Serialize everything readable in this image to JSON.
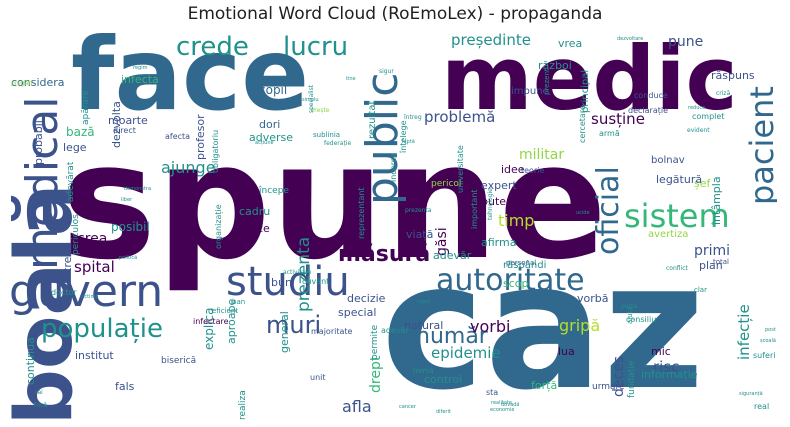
{
  "title": "Emotional Word Cloud (RoEmoLex) - propaganda",
  "palette": {
    "dark_purple": "#440154",
    "indigo": "#3b528b",
    "blue": "#31688e",
    "teal": "#21918c",
    "green": "#35b779",
    "lime": "#90d743",
    "yellow": "#b5de2b"
  },
  "words": [
    {
      "text": "spune",
      "size": "xxl",
      "color": "dark_purple"
    },
    {
      "text": "caz",
      "size": "xxl",
      "color": "blue"
    },
    {
      "text": "face",
      "size": "xl",
      "color": "blue"
    },
    {
      "text": "medic",
      "size": "xl",
      "color": "dark_purple"
    },
    {
      "text": "boală",
      "size": "xl",
      "color": "indigo"
    },
    {
      "text": "guvern",
      "size": "l",
      "color": "indigo"
    },
    {
      "text": "medical",
      "size": "l",
      "color": "indigo"
    },
    {
      "text": "public",
      "size": "l",
      "color": "blue"
    },
    {
      "text": "studiu",
      "size": "l",
      "color": "indigo"
    },
    {
      "text": "sistem",
      "size": "m",
      "color": "green"
    },
    {
      "text": "autoritate",
      "size": "m",
      "color": "blue"
    },
    {
      "text": "populație",
      "size": "m",
      "color": "teal"
    },
    {
      "text": "pacient",
      "size": "m",
      "color": "blue"
    },
    {
      "text": "oficial",
      "size": "m",
      "color": "blue"
    },
    {
      "text": "crede",
      "size": "m",
      "color": "teal"
    },
    {
      "text": "lucru",
      "size": "m",
      "color": "teal"
    },
    {
      "text": "măsură",
      "size": "m",
      "color": "dark_purple"
    },
    {
      "text": "muri",
      "size": "m",
      "color": "indigo"
    },
    {
      "text": "zi",
      "size": "m",
      "color": "dark_purple"
    },
    {
      "text": "număr",
      "size": "m",
      "color": "blue"
    },
    {
      "text": "epidemie",
      "size": "s",
      "color": "teal"
    },
    {
      "text": "prezenta",
      "size": "s",
      "color": "teal"
    },
    {
      "text": "timp",
      "size": "s",
      "color": "yellow"
    },
    {
      "text": "gripă",
      "size": "s",
      "color": "yellow"
    },
    {
      "text": "vorbi",
      "size": "s",
      "color": "dark_purple"
    },
    {
      "text": "spital",
      "size": "s",
      "color": "dark_purple"
    },
    {
      "text": "problemă",
      "size": "s",
      "color": "indigo"
    },
    {
      "text": "președinte",
      "size": "s",
      "color": "teal"
    },
    {
      "text": "susține",
      "size": "s",
      "color": "dark_purple"
    },
    {
      "text": "militar",
      "size": "s",
      "color": "lime"
    },
    {
      "text": "ajunge",
      "size": "s",
      "color": "teal"
    },
    {
      "text": "crea",
      "size": "s",
      "color": "dark_purple"
    },
    {
      "text": "găsi",
      "size": "s",
      "color": "dark_purple"
    },
    {
      "text": "infecție",
      "size": "s",
      "color": "teal"
    },
    {
      "text": "risc",
      "size": "s",
      "color": "indigo"
    },
    {
      "text": "deces",
      "size": "s",
      "color": "indigo"
    },
    {
      "text": "drept",
      "size": "s",
      "color": "green"
    },
    {
      "text": "afla",
      "size": "s",
      "color": "indigo"
    },
    {
      "text": "pune",
      "size": "s",
      "color": "indigo"
    },
    {
      "text": "primi",
      "size": "s",
      "color": "indigo"
    },
    {
      "text": "posibil",
      "size": "xs",
      "color": "teal"
    },
    {
      "text": "copil",
      "size": "xs",
      "color": "blue"
    },
    {
      "text": "dori",
      "size": "xs",
      "color": "blue"
    },
    {
      "text": "adevăr",
      "size": "xs",
      "color": "teal"
    },
    {
      "text": "viață",
      "size": "xs",
      "color": "indigo"
    },
    {
      "text": "expert",
      "size": "xs",
      "color": "indigo"
    },
    {
      "text": "idee",
      "size": "xs",
      "color": "dark_purple"
    },
    {
      "text": "putere",
      "size": "xs",
      "color": "dark_purple"
    },
    {
      "text": "afirma",
      "size": "xs",
      "color": "teal"
    },
    {
      "text": "special",
      "size": "xs",
      "color": "indigo"
    },
    {
      "text": "natural",
      "size": "xs",
      "color": "indigo"
    },
    {
      "text": "decizie",
      "size": "xs",
      "color": "indigo"
    },
    {
      "text": "control",
      "size": "xs",
      "color": "teal"
    },
    {
      "text": "cadru",
      "size": "xs",
      "color": "teal"
    },
    {
      "text": "duce",
      "size": "xs",
      "color": "dark_purple"
    },
    {
      "text": "bun",
      "size": "xs",
      "color": "indigo"
    },
    {
      "text": "lua",
      "size": "xs",
      "color": "dark_purple"
    },
    {
      "text": "mic",
      "size": "xs",
      "color": "dark_purple"
    },
    {
      "text": "informație",
      "size": "xs",
      "color": "teal"
    },
    {
      "text": "plan",
      "size": "xs",
      "color": "indigo"
    },
    {
      "text": "infecta",
      "size": "xs",
      "color": "green"
    },
    {
      "text": "considera",
      "size": "xs",
      "color": "blue"
    },
    {
      "text": "probabil",
      "size": "xs",
      "color": "indigo"
    },
    {
      "text": "moarte",
      "size": "xs",
      "color": "indigo"
    },
    {
      "text": "dezvolta",
      "size": "xs",
      "color": "indigo"
    },
    {
      "text": "bază",
      "size": "xs",
      "color": "green"
    },
    {
      "text": "lege",
      "size": "xs",
      "color": "indigo"
    },
    {
      "text": "adevărat",
      "size": "xs",
      "color": "teal"
    },
    {
      "text": "război",
      "size": "xs",
      "color": "teal"
    },
    {
      "text": "vrea",
      "size": "xs",
      "color": "teal"
    },
    {
      "text": "răspuns",
      "size": "xs",
      "color": "indigo"
    },
    {
      "text": "șef",
      "size": "xs",
      "color": "lime"
    },
    {
      "text": "întâmpla",
      "size": "xs",
      "color": "teal"
    },
    {
      "text": "legătură",
      "size": "xs",
      "color": "indigo"
    },
    {
      "text": "bolnav",
      "size": "xs",
      "color": "indigo"
    },
    {
      "text": "avertiza",
      "size": "xs",
      "color": "lime"
    },
    {
      "text": "explica",
      "size": "xs",
      "color": "teal"
    },
    {
      "text": "aproape",
      "size": "xs",
      "color": "teal"
    },
    {
      "text": "continua",
      "size": "xs",
      "color": "teal"
    },
    {
      "text": "institut",
      "size": "xs",
      "color": "indigo"
    },
    {
      "text": "fals",
      "size": "xs",
      "color": "indigo"
    },
    {
      "text": "forță",
      "size": "xs",
      "color": "green"
    },
    {
      "text": "vorbă",
      "size": "xs",
      "color": "indigo"
    },
    {
      "text": "scop",
      "size": "xs",
      "color": "green"
    },
    {
      "text": "trece",
      "size": "xs",
      "color": "indigo"
    },
    {
      "text": "profesor",
      "size": "xs",
      "color": "indigo"
    },
    {
      "text": "general",
      "size": "xs",
      "color": "teal"
    },
    {
      "text": "permite",
      "size": "xs",
      "color": "teal"
    },
    {
      "text": "doctor",
      "size": "xxs",
      "color": "teal"
    },
    {
      "text": "adevăr",
      "size": "xxs",
      "color": "teal"
    },
    {
      "text": "cuvânt",
      "size": "xxs",
      "color": "teal"
    },
    {
      "text": "rezultat",
      "size": "xxs",
      "color": "teal"
    },
    {
      "text": "pericol",
      "size": "xxs",
      "color": "lime"
    },
    {
      "text": "teorie",
      "size": "xxs",
      "color": "indigo"
    },
    {
      "text": "crește",
      "size": "xxs",
      "color": "lime"
    },
    {
      "text": "întreg",
      "size": "xxs",
      "color": "teal"
    },
    {
      "text": "începe",
      "size": "xxs",
      "color": "teal"
    },
    {
      "text": "consiliu",
      "size": "xxs",
      "color": "teal"
    },
    {
      "text": "conduce",
      "size": "xxs",
      "color": "indigo"
    },
    {
      "text": "declarație",
      "size": "xxs",
      "color": "indigo"
    },
    {
      "text": "principal",
      "size": "xxs",
      "color": "teal"
    },
    {
      "text": "impune",
      "size": "xxs",
      "color": "indigo"
    },
    {
      "text": "urmare",
      "size": "xxs",
      "color": "indigo"
    },
    {
      "text": "biserică",
      "size": "xxs",
      "color": "indigo"
    },
    {
      "text": "majoritate",
      "size": "xxs",
      "color": "indigo"
    },
    {
      "text": "infectare",
      "size": "xxs",
      "color": "dark_purple"
    },
    {
      "text": "eficient",
      "size": "xxs",
      "color": "teal"
    },
    {
      "text": "activitate",
      "size": "xxs",
      "color": "teal"
    },
    {
      "text": "ban",
      "size": "xxs",
      "color": "teal"
    },
    {
      "text": "total",
      "size": "xxs",
      "color": "indigo"
    },
    {
      "text": "personal",
      "size": "xxs",
      "color": "indigo"
    },
    {
      "text": "real",
      "size": "xxs",
      "color": "teal"
    },
    {
      "text": "sta",
      "size": "xxs",
      "color": "indigo"
    },
    {
      "text": "formă",
      "size": "xxs",
      "color": "teal"
    },
    {
      "text": "unit",
      "size": "xxs",
      "color": "indigo"
    },
    {
      "text": "răspândi",
      "size": "xxs",
      "color": "teal"
    },
    {
      "text": "sublinia",
      "size": "xxs",
      "color": "teal"
    },
    {
      "text": "federație",
      "size": "xxs",
      "color": "teal"
    },
    {
      "text": "afecta",
      "size": "xxs",
      "color": "indigo"
    },
    {
      "text": "direct",
      "size": "xxs",
      "color": "indigo"
    },
    {
      "text": "apărare",
      "size": "xxs",
      "color": "teal"
    },
    {
      "text": "periculos",
      "size": "xxs",
      "color": "teal"
    },
    {
      "text": "obligatoriu",
      "size": "xxs",
      "color": "teal"
    },
    {
      "text": "organizație",
      "size": "xxs",
      "color": "teal"
    },
    {
      "text": "incerca",
      "size": "xxs",
      "color": "teal"
    },
    {
      "text": "universitate",
      "size": "xxs",
      "color": "teal"
    },
    {
      "text": "cercetare",
      "size": "xxs",
      "color": "teal"
    },
    {
      "text": "prezent",
      "size": "xxs",
      "color": "teal"
    },
    {
      "text": "complet",
      "size": "xxs",
      "color": "teal"
    },
    {
      "text": "evident",
      "size": "xxs",
      "color": "teal"
    },
    {
      "text": "armă",
      "size": "xxs",
      "color": "teal"
    },
    {
      "text": "criză",
      "size": "xxs",
      "color": "teal"
    },
    {
      "text": "reduce",
      "size": "xxs",
      "color": "teal"
    },
    {
      "text": "adverse",
      "size": "xxs",
      "color": "teal"
    },
    {
      "text": "prezenta",
      "size": "xxs",
      "color": "teal"
    },
    {
      "text": "rapid",
      "size": "xxs",
      "color": "teal"
    },
    {
      "text": "demonstra",
      "size": "xxs",
      "color": "teal"
    },
    {
      "text": "liber",
      "size": "xxs",
      "color": "teal"
    },
    {
      "text": "politică",
      "size": "xxs",
      "color": "teal"
    },
    {
      "text": "ucide",
      "size": "xxs",
      "color": "teal"
    },
    {
      "text": "simplu",
      "size": "xxs",
      "color": "teal"
    },
    {
      "text": "suferi",
      "size": "xxs",
      "color": "teal"
    },
    {
      "text": "frică",
      "size": "xxs",
      "color": "teal"
    },
    {
      "text": "răi",
      "size": "xxs",
      "color": "teal"
    },
    {
      "text": "cancer",
      "size": "xxs",
      "color": "teal"
    },
    {
      "text": "economie",
      "size": "xxs",
      "color": "teal"
    },
    {
      "text": "realitate",
      "size": "xxs",
      "color": "teal"
    },
    {
      "text": "diferit",
      "size": "xxs",
      "color": "teal"
    },
    {
      "text": "școală",
      "size": "xxs",
      "color": "teal"
    },
    {
      "text": "post",
      "size": "xxs",
      "color": "teal"
    },
    {
      "text": "clar",
      "size": "xxs",
      "color": "teal"
    },
    {
      "text": "conflict",
      "size": "xxs",
      "color": "teal"
    },
    {
      "text": "acțiune",
      "size": "xxs",
      "color": "teal"
    },
    {
      "text": "pregăti",
      "size": "xxs",
      "color": "lime"
    },
    {
      "text": "luptă",
      "size": "xxs",
      "color": "teal"
    },
    {
      "text": "dovadă",
      "size": "xxs",
      "color": "teal"
    },
    {
      "text": "tine",
      "size": "xxs",
      "color": "teal"
    },
    {
      "text": "înțelege",
      "size": "xxs",
      "color": "teal"
    },
    {
      "text": "dezvoltare",
      "size": "xxs",
      "color": "teal"
    },
    {
      "text": "regim",
      "size": "xxs",
      "color": "teal"
    },
    {
      "text": "sigur",
      "size": "xxs",
      "color": "teal"
    },
    {
      "text": "siguranță",
      "size": "xxs",
      "color": "teal"
    },
    {
      "text": "tehnologie",
      "size": "xxs",
      "color": "teal"
    },
    {
      "text": "purta",
      "size": "xxs",
      "color": "teal"
    },
    {
      "text": "fundație",
      "size": "xxs",
      "color": "teal"
    },
    {
      "text": "ajuta",
      "size": "xxs",
      "color": "teal"
    },
    {
      "text": "specialist",
      "size": "xxs",
      "color": "teal"
    },
    {
      "text": "important",
      "size": "xxs",
      "color": "teal"
    },
    {
      "text": "reprezentant",
      "size": "xxs",
      "color": "teal"
    },
    {
      "text": "realiza",
      "size": "xxs",
      "color": "teal"
    },
    {
      "text": "victimă",
      "size": "xxs",
      "color": "teal"
    }
  ]
}
